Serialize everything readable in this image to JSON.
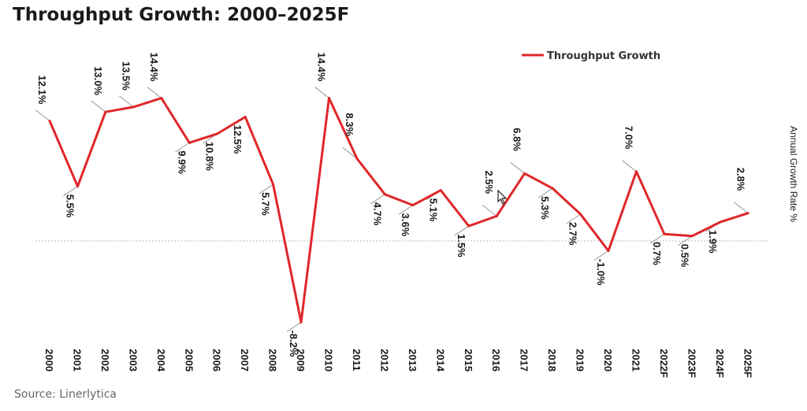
{
  "title": "Throughput Growth: 2000–2025F",
  "source": "Source: Linerlytica",
  "chart_data": {
    "type": "line",
    "title": "Throughput Growth: 2000–2025F",
    "xlabel": "",
    "ylabel": "Annual Growth Rate %",
    "categories": [
      "2000",
      "2001",
      "2002",
      "2003",
      "2004",
      "2005",
      "2006",
      "2007",
      "2008",
      "2009",
      "2010",
      "2011",
      "2012",
      "2013",
      "2014",
      "2015",
      "2016",
      "2017",
      "2018",
      "2019",
      "2020",
      "2021",
      "2022F",
      "2023F",
      "2024F",
      "2025F"
    ],
    "series": [
      {
        "name": "Throughput Growth",
        "color": "#e0272a",
        "values": [
          12.1,
          5.5,
          13.0,
          13.5,
          14.4,
          9.9,
          10.8,
          12.5,
          5.7,
          -8.2,
          14.4,
          8.3,
          4.7,
          3.6,
          5.1,
          1.5,
          2.5,
          6.8,
          5.3,
          2.7,
          -1.0,
          7.0,
          0.7,
          0.5,
          1.9,
          2.8
        ],
        "labels": [
          "12.1%",
          "5.5%",
          "13.0%",
          "13.5%",
          "14.4%",
          "9.9%",
          "10.8%",
          "12.5%",
          "5.7%",
          "-8.2%",
          "14.4%",
          "8.3%",
          "4.7%",
          "3.6%",
          "5.1%",
          "1.5%",
          "2.5%",
          "6.8%",
          "5.3%",
          "2.7%",
          "-1.0%",
          "7.0%",
          "0.7%",
          "0.5%",
          "1.9%",
          "2.8%"
        ]
      }
    ],
    "ylim": [
      -9,
      16
    ],
    "grid": false,
    "zero_line": true,
    "legend_position": "top-right",
    "line_color": "#e0272a"
  }
}
